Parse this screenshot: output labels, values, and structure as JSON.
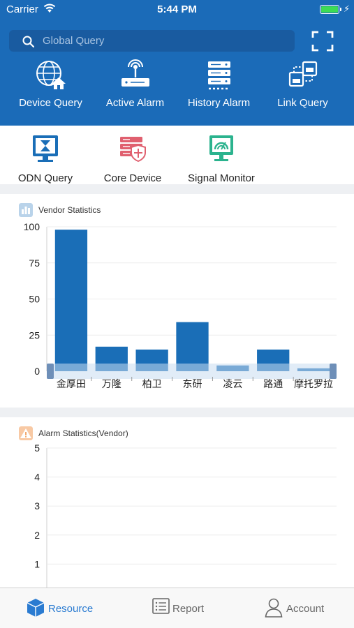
{
  "status": {
    "carrier": "Carrier",
    "time": "5:44 PM"
  },
  "search": {
    "placeholder": "Global Query"
  },
  "quick_actions": [
    {
      "label": "Device Query",
      "icon": "globe-home-icon"
    },
    {
      "label": "Active Alarm",
      "icon": "signal-router-icon"
    },
    {
      "label": "History Alarm",
      "icon": "server-rack-icon"
    },
    {
      "label": "Link Query",
      "icon": "linked-devices-icon"
    }
  ],
  "tools": [
    {
      "label": "ODN Query",
      "icon": "monitor-hourglass-icon"
    },
    {
      "label": "Core Device",
      "icon": "core-server-shield-icon"
    },
    {
      "label": "Signal Monitor",
      "icon": "signal-monitor-icon"
    }
  ],
  "colors": {
    "header": "#1b6bb8",
    "bar": "#1a6eb7",
    "active_tab": "#2a7bd1",
    "inactive_tab": "#666666"
  },
  "vendor_card": {
    "title": "Vendor Statistics",
    "chart_data": {
      "type": "bar",
      "title": "Vendor Statistics",
      "categories": [
        "金厚田",
        "万隆",
        "柏卫",
        "东研",
        "凌云",
        "路通",
        "摩托罗拉"
      ],
      "values": [
        98,
        17,
        15,
        34,
        4,
        15,
        2
      ],
      "ylim": [
        0,
        100
      ],
      "yticks": [
        0,
        25,
        50,
        75,
        100
      ],
      "grid": true,
      "legend": "none"
    }
  },
  "alarm_card": {
    "title": "Alarm Statistics(Vendor)",
    "chart_data": {
      "type": "bar",
      "title": "Alarm Statistics(Vendor)",
      "categories": [],
      "values": [],
      "ylim": [
        0,
        5
      ],
      "yticks": [
        1,
        2,
        3,
        4,
        5
      ],
      "grid": true,
      "legend": "none"
    }
  },
  "tabs": [
    {
      "label": "Resource",
      "icon": "cube-icon",
      "active": true
    },
    {
      "label": "Report",
      "icon": "list-report-icon",
      "active": false
    },
    {
      "label": "Account",
      "icon": "person-icon",
      "active": false
    }
  ]
}
